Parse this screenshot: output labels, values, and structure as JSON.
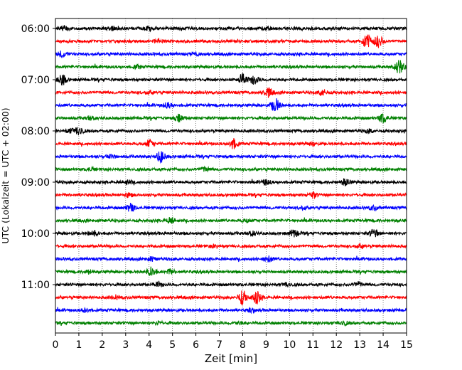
{
  "chart_data": {
    "type": "line",
    "title": "",
    "xlabel": "Zeit  [min]",
    "ylabel": "UTC (Lokalzeit = UTC + 02:00)",
    "xlim": [
      0,
      15
    ],
    "x_ticks": [
      0,
      1,
      2,
      3,
      4,
      5,
      6,
      7,
      8,
      9,
      10,
      11,
      12,
      13,
      14,
      15
    ],
    "x_tick_labels": [
      "0",
      "1",
      "2",
      "3",
      "4",
      "5",
      "6",
      "7",
      "8",
      "9",
      "10",
      "11",
      "12",
      "13",
      "14",
      "15"
    ],
    "y_tick_labels": [
      "06:00",
      "07:00",
      "08:00",
      "09:00",
      "10:00",
      "11:00"
    ],
    "grid": {
      "x": true,
      "y": false,
      "style": "dotted"
    },
    "colors": [
      "#000000",
      "#ff0000",
      "#0000ff",
      "#008000"
    ],
    "traces": [
      {
        "start": "06:00",
        "color": "#000000",
        "events": [
          [
            0.4,
            0.6
          ],
          [
            2.4,
            0.5
          ],
          [
            4.0,
            0.5
          ],
          [
            9.0,
            0.4
          ]
        ]
      },
      {
        "start": "06:15",
        "color": "#ff0000",
        "events": [
          [
            13.3,
            2.2
          ],
          [
            13.8,
            1.8
          ],
          [
            4.4,
            0.5
          ]
        ]
      },
      {
        "start": "06:30",
        "color": "#0000ff",
        "events": [
          [
            0.3,
            0.9
          ],
          [
            6.0,
            0.4
          ]
        ]
      },
      {
        "start": "06:45",
        "color": "#008000",
        "events": [
          [
            14.7,
            2.0
          ],
          [
            3.5,
            0.4
          ]
        ]
      },
      {
        "start": "07:00",
        "color": "#000000",
        "events": [
          [
            0.3,
            1.5
          ],
          [
            8.0,
            1.6
          ],
          [
            8.5,
            1.3
          ]
        ]
      },
      {
        "start": "07:15",
        "color": "#ff0000",
        "events": [
          [
            9.1,
            1.3
          ],
          [
            11.4,
            0.9
          ],
          [
            4.0,
            0.5
          ]
        ]
      },
      {
        "start": "07:30",
        "color": "#0000ff",
        "events": [
          [
            9.4,
            2.0
          ],
          [
            4.8,
            0.7
          ]
        ]
      },
      {
        "start": "07:45",
        "color": "#008000",
        "events": [
          [
            5.3,
            1.0
          ],
          [
            14.0,
            1.3
          ],
          [
            1.5,
            0.5
          ]
        ]
      },
      {
        "start": "08:00",
        "color": "#000000",
        "events": [
          [
            1.0,
            1.3
          ],
          [
            0.6,
            0.6
          ],
          [
            13.4,
            0.6
          ]
        ]
      },
      {
        "start": "08:15",
        "color": "#ff0000",
        "events": [
          [
            4.0,
            1.0
          ],
          [
            7.6,
            1.4
          ],
          [
            11.0,
            0.4
          ]
        ]
      },
      {
        "start": "08:30",
        "color": "#0000ff",
        "events": [
          [
            4.5,
            1.6
          ],
          [
            2.4,
            0.4
          ]
        ]
      },
      {
        "start": "08:45",
        "color": "#008000",
        "events": [
          [
            6.4,
            0.6
          ],
          [
            1.5,
            0.4
          ]
        ]
      },
      {
        "start": "09:00",
        "color": "#000000",
        "events": [
          [
            9.0,
            0.7
          ],
          [
            12.4,
            1.0
          ],
          [
            3.1,
            0.5
          ]
        ]
      },
      {
        "start": "09:15",
        "color": "#ff0000",
        "events": [
          [
            11.0,
            0.8
          ],
          [
            3.1,
            0.5
          ]
        ]
      },
      {
        "start": "09:30",
        "color": "#0000ff",
        "events": [
          [
            3.2,
            1.2
          ],
          [
            10.6,
            0.6
          ],
          [
            13.6,
            0.6
          ]
        ]
      },
      {
        "start": "09:45",
        "color": "#008000",
        "events": [
          [
            4.9,
            0.8
          ],
          [
            8.2,
            0.4
          ]
        ]
      },
      {
        "start": "10:00",
        "color": "#000000",
        "events": [
          [
            1.6,
            0.8
          ],
          [
            10.2,
            1.1
          ],
          [
            13.6,
            1.1
          ],
          [
            8.4,
            0.6
          ]
        ]
      },
      {
        "start": "10:15",
        "color": "#ff0000",
        "events": [
          [
            13.0,
            0.6
          ],
          [
            6.8,
            0.4
          ]
        ]
      },
      {
        "start": "10:30",
        "color": "#0000ff",
        "events": [
          [
            9.1,
            0.8
          ],
          [
            4.1,
            0.5
          ]
        ]
      },
      {
        "start": "10:45",
        "color": "#008000",
        "events": [
          [
            4.1,
            1.3
          ],
          [
            4.9,
            0.7
          ],
          [
            1.4,
            0.5
          ]
        ]
      },
      {
        "start": "11:00",
        "color": "#000000",
        "events": [
          [
            4.4,
            0.7
          ],
          [
            9.9,
            0.6
          ],
          [
            12.9,
            0.6
          ]
        ]
      },
      {
        "start": "11:15",
        "color": "#ff0000",
        "events": [
          [
            8.0,
            2.0
          ],
          [
            8.6,
            1.7
          ],
          [
            2.6,
            0.4
          ]
        ]
      },
      {
        "start": "11:30",
        "color": "#0000ff",
        "events": [
          [
            1.3,
            0.6
          ],
          [
            8.4,
            0.4
          ]
        ]
      },
      {
        "start": "11:45",
        "color": "#008000",
        "events": [
          [
            12.3,
            0.6
          ],
          [
            4.4,
            0.4
          ],
          [
            7.8,
            0.4
          ]
        ]
      }
    ]
  }
}
